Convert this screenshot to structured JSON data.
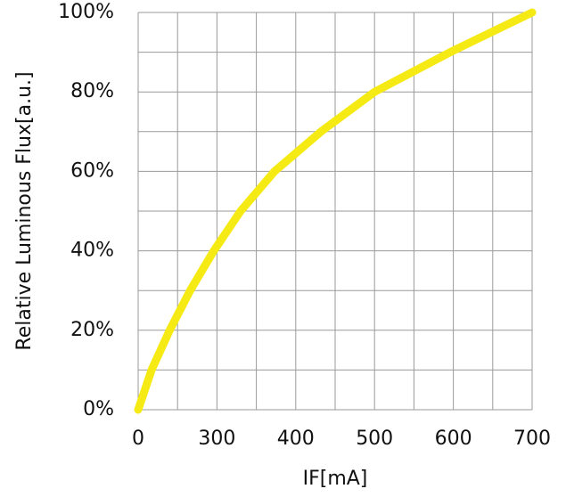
{
  "chart_data": {
    "type": "line",
    "y_label": "Relative Luminous Flux[a.u.]",
    "x_label": "IF[mA]",
    "x": [
      200,
      217,
      240,
      266,
      296,
      330,
      373,
      432,
      500,
      596,
      700
    ],
    "series": [
      {
        "color": "#f5ea14",
        "values": [
          0,
          10,
          20,
          30,
          40,
          50,
          60,
          70,
          80,
          90,
          100
        ]
      }
    ],
    "xlim": [
      200,
      700
    ],
    "xticks": [
      {
        "value": 200,
        "label": "0"
      },
      300,
      400,
      500,
      600,
      700
    ],
    "minor_xticks": [
      250,
      350,
      450,
      550,
      650
    ],
    "ylim": [
      0,
      100
    ],
    "yticks": [
      {
        "value": 0,
        "label": "0%"
      },
      {
        "value": 20,
        "label": "20%"
      },
      {
        "value": 40,
        "label": "40%"
      },
      {
        "value": 60,
        "label": "60%"
      },
      {
        "value": 80,
        "label": "80%"
      },
      {
        "value": 100,
        "label": "100%"
      }
    ],
    "minor_yticks": [
      10,
      30,
      50,
      70,
      90
    ],
    "grid": true
  }
}
